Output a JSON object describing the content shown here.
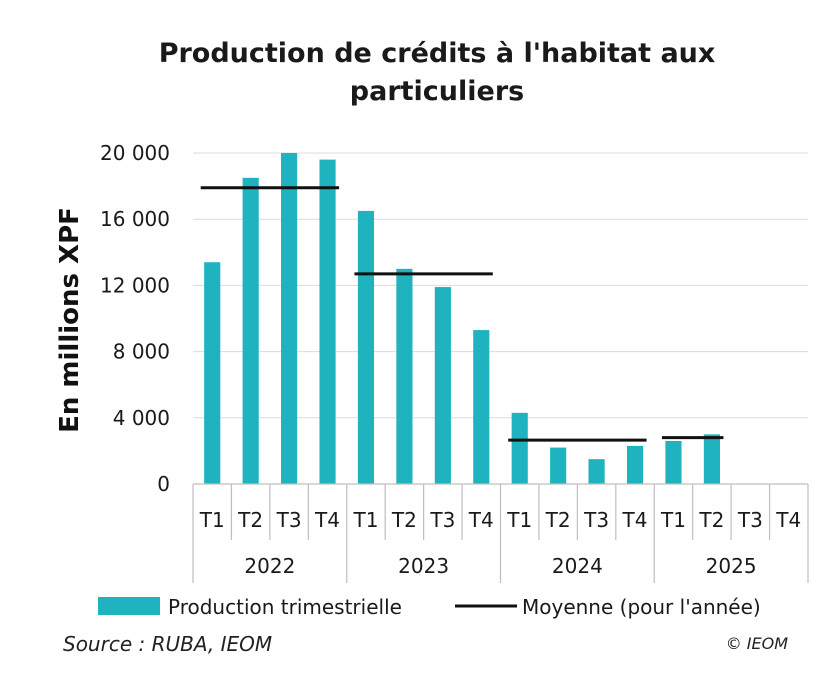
{
  "chart_data": {
    "type": "bar",
    "title_line1": "Production de crédits à l'habitat aux",
    "title_line2": "particuliers",
    "ylabel": "En millions XPF",
    "ylim": [
      0,
      20000
    ],
    "yticks": [
      0,
      4000,
      8000,
      12000,
      16000,
      20000
    ],
    "ytick_labels": [
      "0",
      "4 000",
      "8 000",
      "12 000",
      "16 000",
      "20 000"
    ],
    "grid": true,
    "quarters": [
      "T1",
      "T2",
      "T3",
      "T4",
      "T1",
      "T2",
      "T3",
      "T4",
      "T1",
      "T2",
      "T3",
      "T4",
      "T1",
      "T2",
      "T3",
      "T4"
    ],
    "years": [
      "2022",
      "2023",
      "2024",
      "2025"
    ],
    "series": [
      {
        "name": "Production trimestrielle",
        "kind": "bar",
        "color": "#1fb3bf",
        "values": [
          13400,
          18500,
          20000,
          19600,
          16500,
          13000,
          11900,
          9300,
          4300,
          2200,
          1500,
          2300,
          2600,
          3000,
          null,
          null
        ]
      },
      {
        "name": "Moyenne (pour l'année)",
        "kind": "line",
        "color": "#111111",
        "values": [
          17900,
          12700,
          2650,
          2800
        ]
      }
    ],
    "legend_position": "bottom"
  },
  "footer": {
    "source": "Source : RUBA, IEOM",
    "copyright": "© IEOM"
  }
}
